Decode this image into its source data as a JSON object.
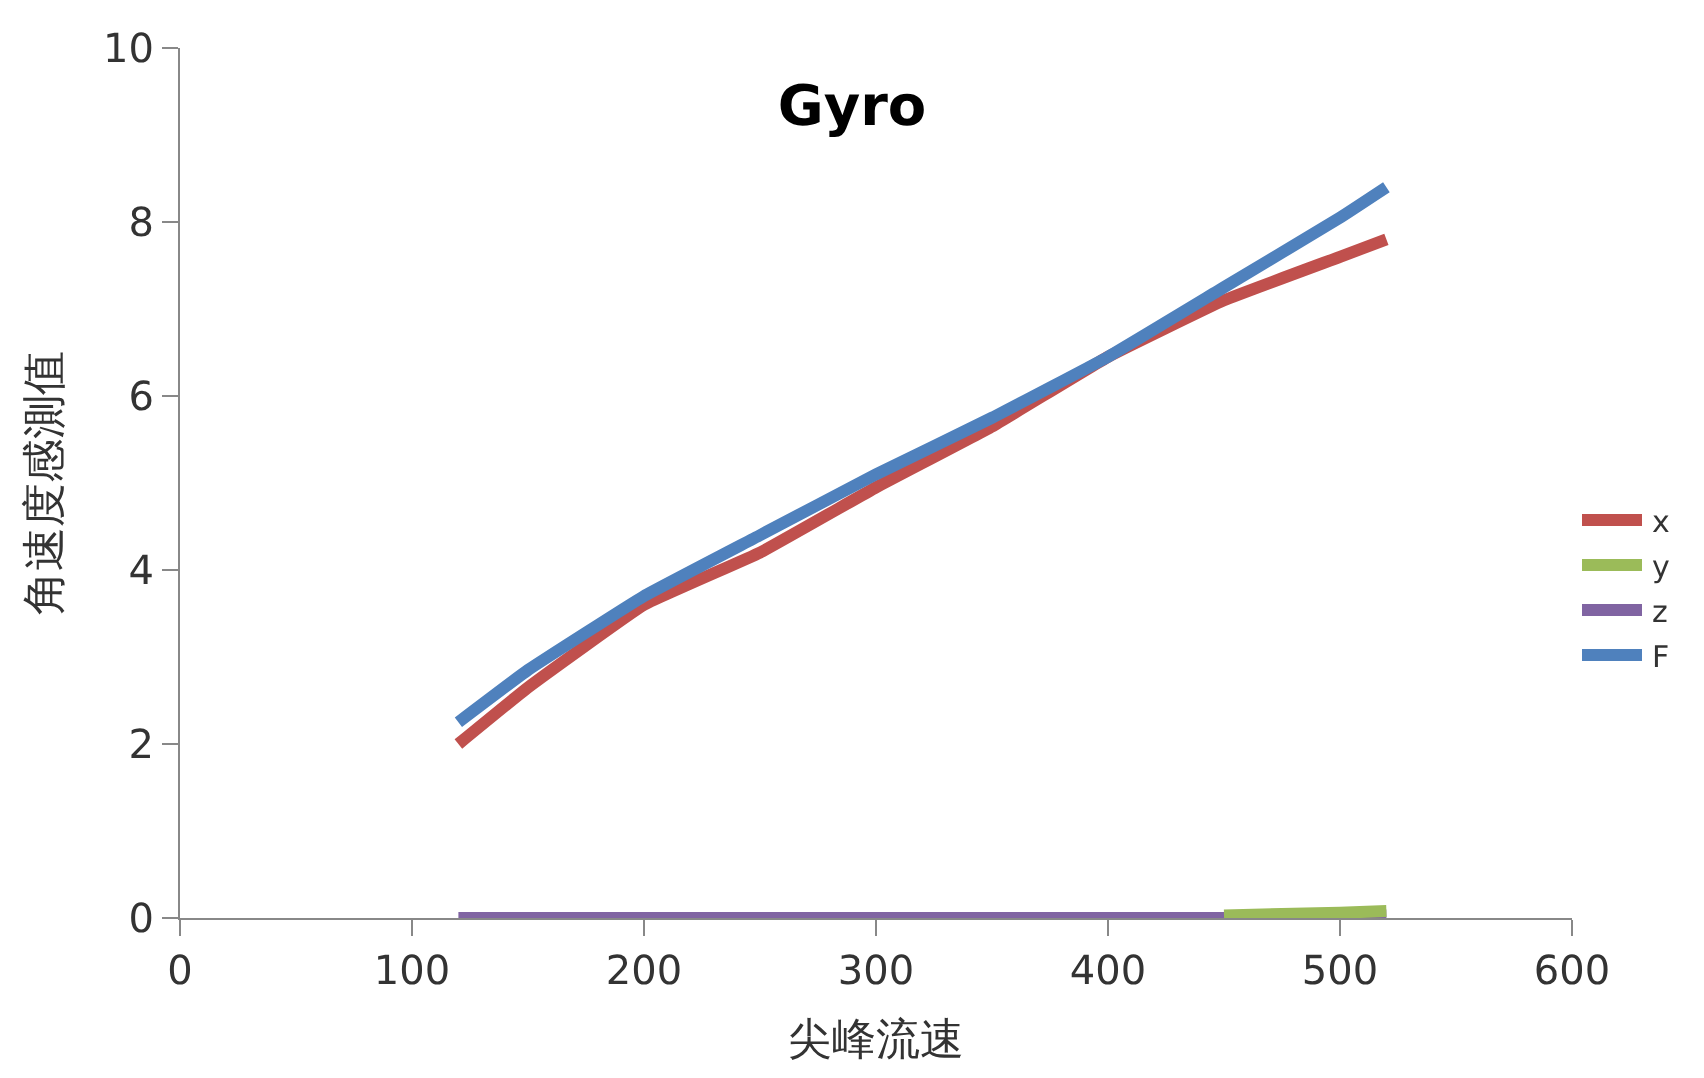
{
  "chart_data": {
    "type": "line",
    "title": "Gyro",
    "xlabel": "尖峰流速",
    "ylabel": "角速度感測值",
    "x": [
      120,
      150,
      200,
      250,
      300,
      350,
      400,
      450,
      500,
      520
    ],
    "series": [
      {
        "name": "x",
        "color": "#c0504d",
        "values": [
          2.0,
          2.65,
          3.6,
          4.2,
          4.95,
          5.65,
          6.45,
          7.1,
          7.6,
          7.8
        ]
      },
      {
        "name": "y",
        "color": "#9bbb59",
        "values": [
          null,
          null,
          null,
          null,
          null,
          null,
          null,
          0.03,
          0.06,
          0.08
        ]
      },
      {
        "name": "z",
        "color": "#8064a2",
        "values": [
          0,
          0,
          0,
          0,
          0,
          0,
          0,
          0,
          0.02,
          0.03
        ]
      },
      {
        "name": "F",
        "color": "#4f81bd",
        "values": [
          2.25,
          2.85,
          3.7,
          4.4,
          5.1,
          5.75,
          6.45,
          7.25,
          8.05,
          8.4
        ]
      }
    ],
    "xlim": [
      0,
      600
    ],
    "xticks": [
      0,
      100,
      200,
      300,
      400,
      500,
      600
    ],
    "ylim": [
      0,
      10
    ],
    "yticks": [
      0,
      2,
      4,
      6,
      8,
      10
    ],
    "legend": "right",
    "marker": "none",
    "line_style": "solid"
  }
}
